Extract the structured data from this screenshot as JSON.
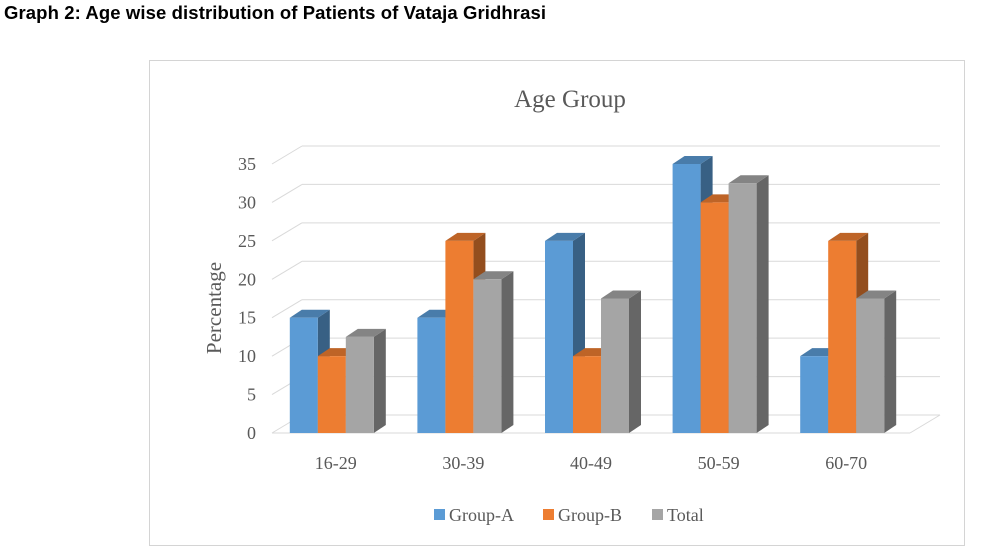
{
  "page": {
    "heading": "Graph 2: Age wise distribution of Patients of Vataja Gridhrasi"
  },
  "chart_data": {
    "type": "bar",
    "style": "3d-clustered-column",
    "title": "Age Group",
    "xlabel": "",
    "ylabel": "Percentage",
    "ylim": [
      0,
      35
    ],
    "yticks": [
      0,
      5,
      10,
      15,
      20,
      25,
      30,
      35
    ],
    "grid": true,
    "legend_position": "bottom",
    "categories": [
      "16-29",
      "30-39",
      "40-49",
      "50-59",
      "60-70"
    ],
    "series": [
      {
        "name": "Group-A",
        "color": "#5b9bd5",
        "values": [
          15,
          15,
          25,
          35,
          10
        ]
      },
      {
        "name": "Group-B",
        "color": "#ed7d31",
        "values": [
          10,
          25,
          10,
          30,
          25
        ]
      },
      {
        "name": "Total",
        "color": "#a5a5a5",
        "values": [
          12.5,
          20,
          17.5,
          32.5,
          17.5
        ]
      }
    ]
  }
}
